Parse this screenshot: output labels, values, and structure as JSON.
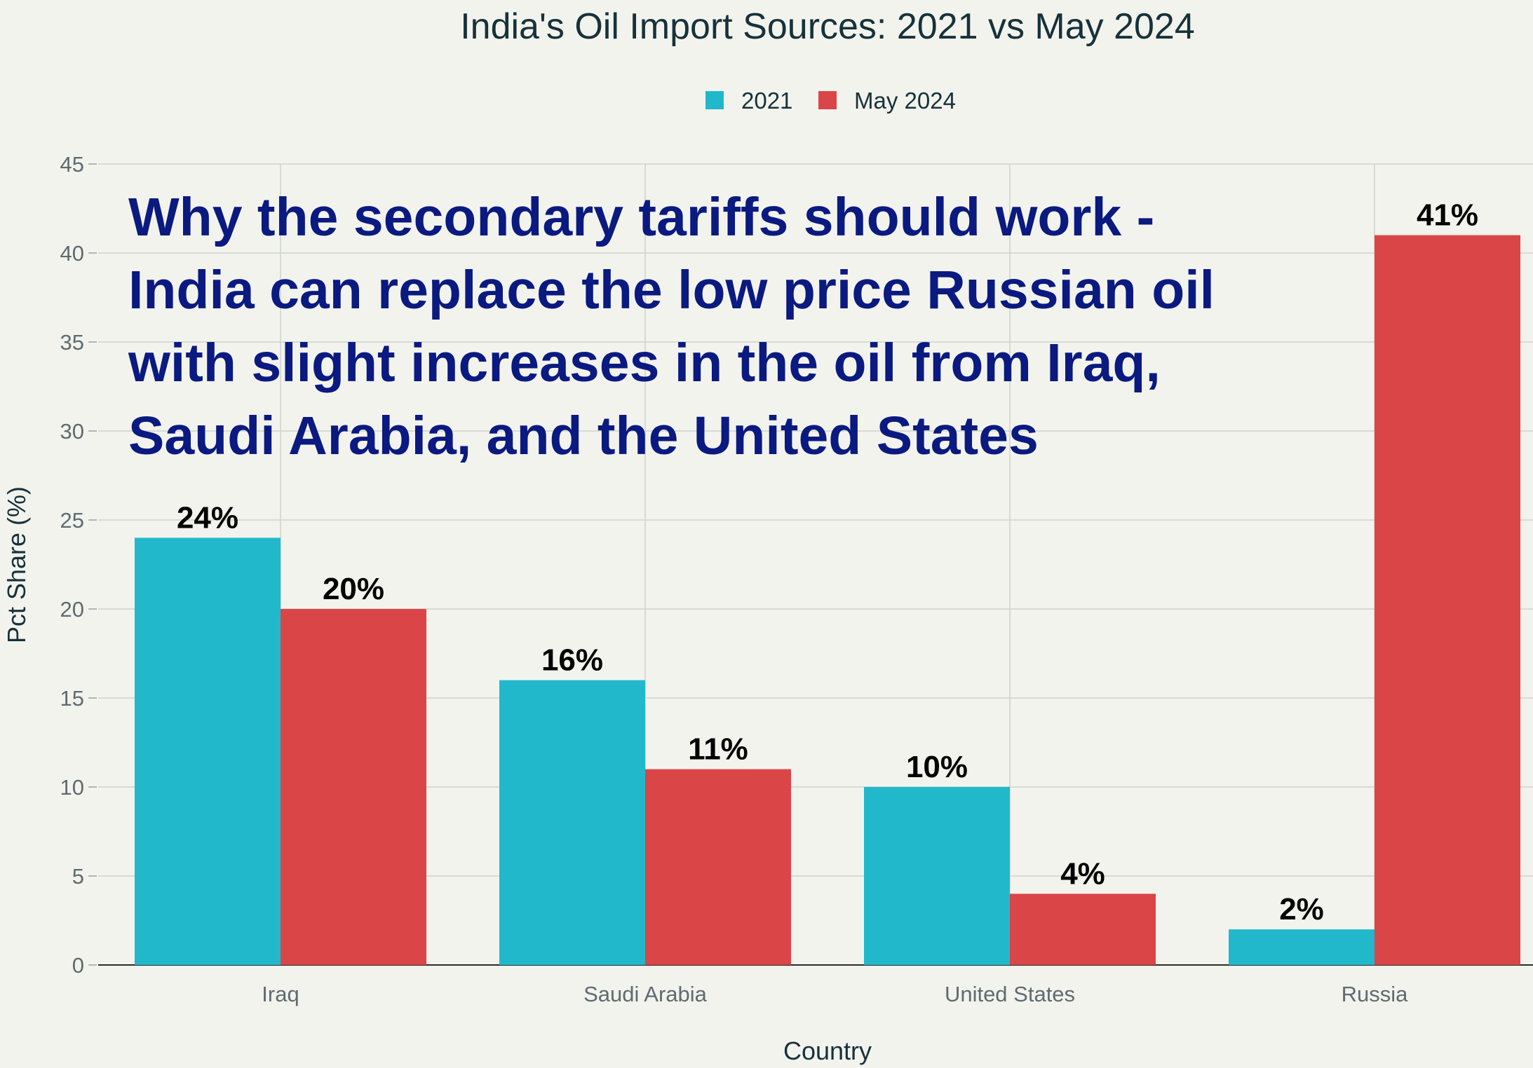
{
  "chart_data": {
    "type": "bar",
    "title": "India's Oil Import Sources: 2021 vs May 2024",
    "xlabel": "Country",
    "ylabel": "Pct Share (%)",
    "ylim": [
      0,
      45
    ],
    "yticks": [
      0,
      5,
      10,
      15,
      20,
      25,
      30,
      35,
      40,
      45
    ],
    "categories": [
      "Iraq",
      "Saudi Arabia",
      "United States",
      "Russia"
    ],
    "series": [
      {
        "name": "2021",
        "color": "#21b8cc",
        "values": [
          24,
          16,
          10,
          2
        ],
        "labels": [
          "24%",
          "16%",
          "10%",
          "2%"
        ]
      },
      {
        "name": "May 2024",
        "color": "#da4547",
        "values": [
          20,
          11,
          4,
          41
        ],
        "labels": [
          "20%",
          "11%",
          "4%",
          "41%"
        ]
      }
    ],
    "legend_position": "top-center",
    "grid": true,
    "annotation": {
      "lines": [
        "Why the secondary tariffs should work -",
        "India can replace the low price Russian oil",
        "with slight increases in the oil from Iraq,",
        "Saudi Arabia, and the United States"
      ],
      "color": "#0a1a80"
    }
  }
}
